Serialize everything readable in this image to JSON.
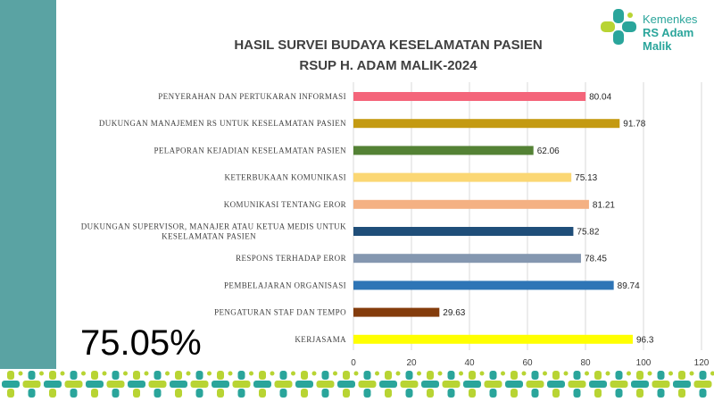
{
  "logo": {
    "line1": "Kemenkes",
    "line2": "RS Adam Malik"
  },
  "overall_score": "75.05%",
  "colors": {
    "sidebar": "#5aa3a3",
    "pattern_teal": "#2aa59b",
    "pattern_lime": "#b8d433"
  },
  "chart_data": {
    "type": "bar",
    "orientation": "horizontal",
    "title": [
      "HASIL SURVEI BUDAYA KESELAMATAN PASIEN",
      "RSUP H. ADAM MALIK-2024"
    ],
    "xlim": [
      0,
      120
    ],
    "xticks": [
      0,
      20,
      40,
      60,
      80,
      100,
      120
    ],
    "grid": true,
    "legend": "none",
    "categories": [
      [
        "PENYERAHAN DAN PERTUKARAN INFORMASI"
      ],
      [
        "DUKUNGAN MANAJEMEN RS UNTUK KESELAMATAN PASIEN"
      ],
      [
        "PELAPORAN KEJADIAN KESELAMATAN PASIEN"
      ],
      [
        "KETERBUKAAN KOMUNIKASI"
      ],
      [
        "KOMUNIKASI TENTANG EROR"
      ],
      [
        "DUKUNGAN SUPERVISOR, MANAJER ATAU KETUA MEDIS UNTUK",
        "KESELAMATAN PASIEN"
      ],
      [
        "RESPONS TERHADAP EROR"
      ],
      [
        "PEMBELAJARAN ORGANISASI"
      ],
      [
        "PENGATURAN STAF DAN TEMPO"
      ],
      [
        "KERJASAMA"
      ]
    ],
    "values": [
      80.04,
      91.78,
      62.06,
      75.13,
      81.21,
      75.82,
      78.45,
      89.74,
      29.63,
      96.3
    ],
    "value_labels": [
      "80.04",
      "91.78",
      "62.06",
      "75.13",
      "81.21",
      "75.82",
      "78.45",
      "89.74",
      "29.63",
      "96.3"
    ],
    "bar_colors": [
      "#f4657a",
      "#c49a12",
      "#548235",
      "#fbd774",
      "#f4b183",
      "#1f4e79",
      "#8497b0",
      "#2e75b6",
      "#843c0c",
      "#ffff00"
    ]
  }
}
